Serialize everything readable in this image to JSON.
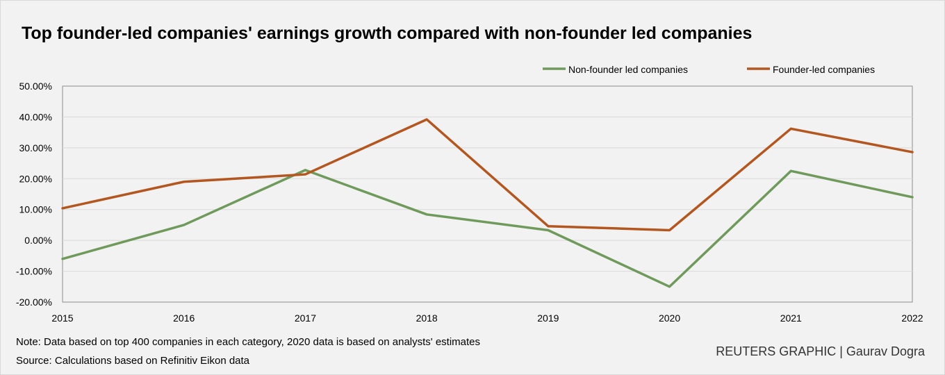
{
  "chart_data": {
    "type": "line",
    "title": "Top founder-led companies' earnings growth compared with non-founder led companies",
    "x": [
      "2015",
      "2016",
      "2017",
      "2018",
      "2019",
      "2020",
      "2021",
      "2022"
    ],
    "series": [
      {
        "name": "Non-founder led companies",
        "color": "#6f9a5c",
        "values": [
          -6.0,
          5.0,
          22.8,
          8.4,
          3.3,
          -15.0,
          22.5,
          14.0
        ]
      },
      {
        "name": "Founder-led companies",
        "color": "#b4561f",
        "values": [
          10.4,
          19.0,
          21.4,
          39.2,
          4.6,
          3.3,
          36.2,
          28.6
        ]
      }
    ],
    "ylim": [
      -20,
      50
    ],
    "yticks": [
      -20,
      -10,
      0,
      10,
      20,
      30,
      40,
      50
    ],
    "ytick_labels": [
      "-20.00%",
      "-10.00%",
      "0.00%",
      "10.00%",
      "20.00%",
      "30.00%",
      "40.00%",
      "50.00%"
    ],
    "legend": "top-right",
    "grid": true,
    "xlabel": "",
    "ylabel": ""
  },
  "footer": {
    "note": "Note: Data based on top 400 companies in each category, 2020 data is based on analysts' estimates",
    "source": "Source: Calculations based on Refinitiv Eikon data",
    "credit": "REUTERS GRAPHIC | Gaurav Dogra"
  }
}
